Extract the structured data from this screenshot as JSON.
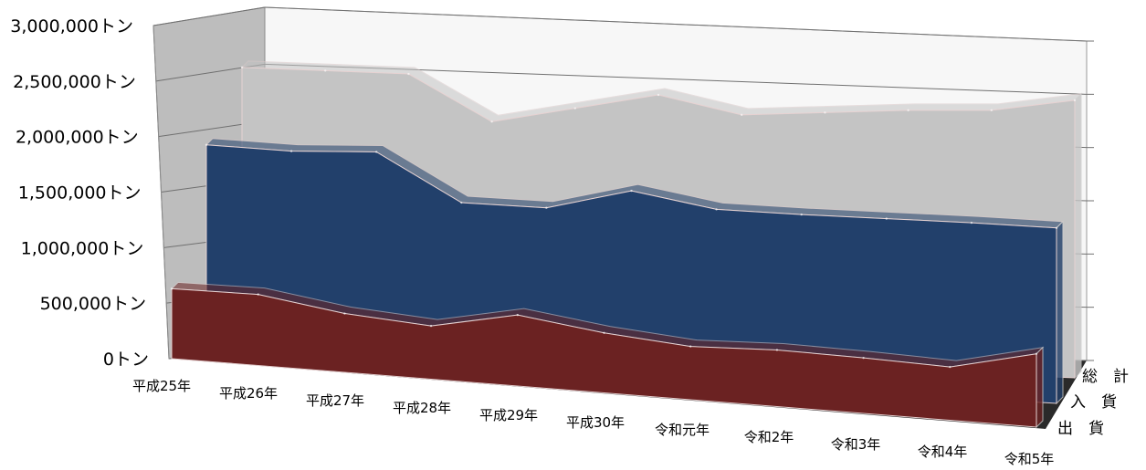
{
  "chart_data": {
    "type": "area",
    "style": "3d-stacked-depth",
    "title": "",
    "xlabel": "",
    "ylabel": "",
    "ylim": [
      0,
      3000000
    ],
    "y_ticks": [
      "0トン",
      "500,000トン",
      "1,000,000トン",
      "1,500,000トン",
      "2,000,000トン",
      "2,500,000トン",
      "3,000,000トン"
    ],
    "categories": [
      "平成25年",
      "平成26年",
      "平成27年",
      "平成28年",
      "平成29年",
      "平成30年",
      "令和元年",
      "令和2年",
      "令和3年",
      "令和4年",
      "令和5年"
    ],
    "series": [
      {
        "name": "出　貨",
        "color": "#6b2222",
        "values": [
          630000,
          640000,
          530000,
          480000,
          640000,
          540000,
          480000,
          510000,
          500000,
          480000,
          660000
        ]
      },
      {
        "name": "入　貨",
        "color": "#22406b",
        "values": [
          1860000,
          1850000,
          1890000,
          1480000,
          1480000,
          1680000,
          1560000,
          1560000,
          1570000,
          1580000,
          1580000
        ]
      },
      {
        "name": "総　計",
        "color": "#c4c4c4",
        "values": [
          2500000,
          2500000,
          2500000,
          2100000,
          2250000,
          2400000,
          2250000,
          2300000,
          2350000,
          2380000,
          2500000
        ]
      }
    ],
    "grid": true,
    "legend": "depth-axis-right"
  }
}
